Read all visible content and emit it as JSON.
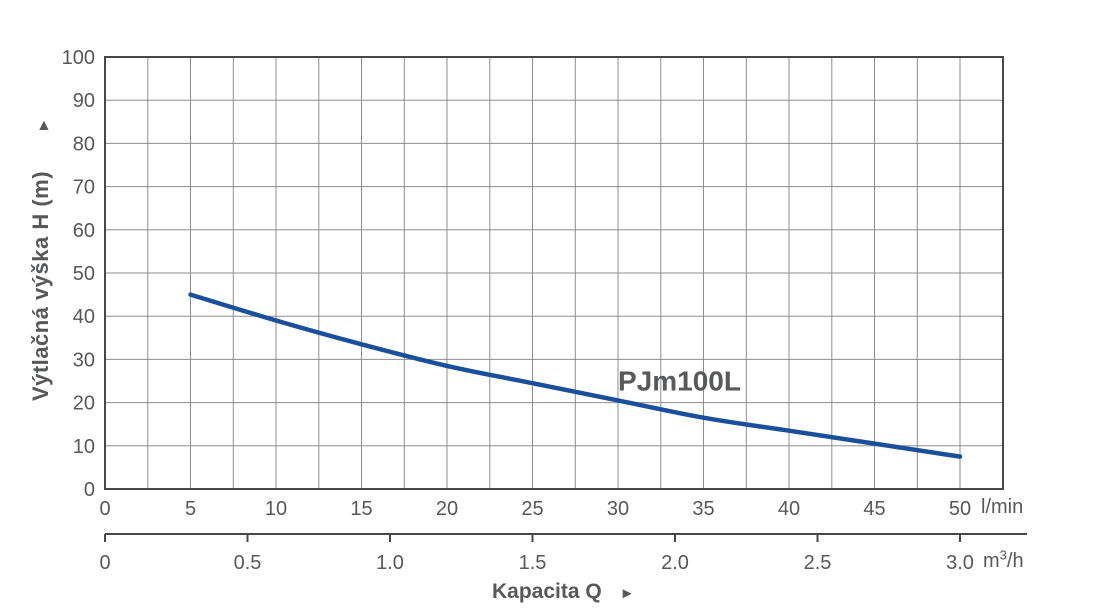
{
  "chart_data": {
    "type": "line",
    "title": "",
    "series": [
      {
        "name": "PJm100L",
        "x_lmin": [
          5,
          10,
          15,
          20,
          25,
          30,
          35,
          40,
          45,
          50
        ],
        "y_head_m": [
          45,
          39,
          33.5,
          28.5,
          24.5,
          20.5,
          16.5,
          13.5,
          10.5,
          7.5
        ]
      }
    ],
    "curve_label": {
      "text": "PJm100L",
      "x_lmin": 30,
      "y_m": 22.8
    },
    "x_axis": {
      "label": "Kapacita Q",
      "primary": {
        "unit": "l/min",
        "tick_values": [
          0,
          5,
          10,
          15,
          20,
          25,
          30,
          35,
          40,
          45,
          50
        ],
        "min": 0,
        "max": 52.5,
        "grid_step": 2.5
      },
      "secondary": {
        "unit_parts": {
          "base": "m",
          "sup": "3",
          "rest": "/h"
        },
        "tick_labels": [
          "0",
          "0.5",
          "1.0",
          "1.5",
          "2.0",
          "2.5",
          "3.0"
        ],
        "lmin_per_unit": 16.6667
      }
    },
    "y_axis": {
      "label": "Výtlačná výška H (m)",
      "tick_values": [
        0,
        10,
        20,
        30,
        40,
        50,
        60,
        70,
        80,
        90,
        100
      ],
      "min": 0,
      "max": 100,
      "grid_step": 10
    },
    "legend": "none",
    "grid": "both",
    "colors": {
      "curve": "#1a4f9c",
      "grid": "#8d8d8d",
      "frame": "#474747",
      "text": "#57585a"
    }
  },
  "decor": {
    "y_axis_arrow": "▲",
    "x_axis_arrow": "►"
  }
}
